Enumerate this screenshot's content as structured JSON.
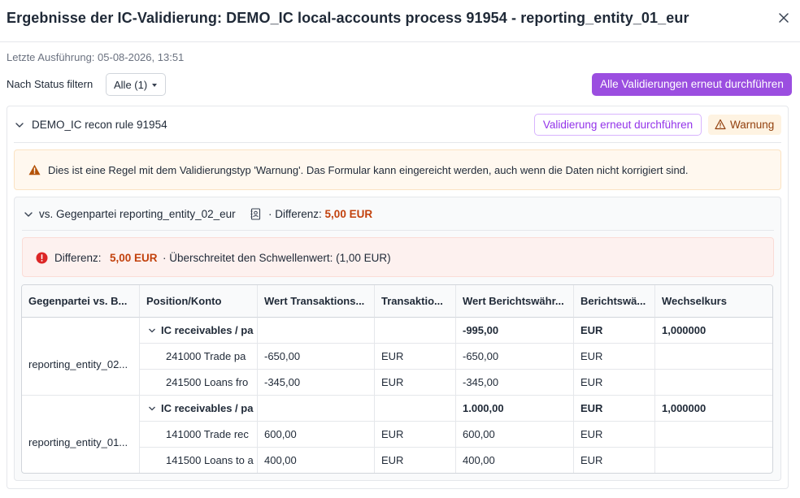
{
  "dialog": {
    "title": "Ergebnisse der IC-Validierung: DEMO_IC local-accounts process 91954 - reporting_entity_01_eur",
    "last_run": "Letzte Ausführung: 05-08-2026, 13:51",
    "filter_label": "Nach Status filtern",
    "filter_value": "Alle (1)",
    "rerun_all_label": "Alle Validierungen erneut durchführen"
  },
  "rule": {
    "name": "DEMO_IC recon rule 91954",
    "rerun_label": "Validierung erneut durchführen",
    "status_label": "Warnung",
    "warning_text": "Dies ist eine Regel mit dem Validierungstyp 'Warnung'. Das Formular kann eingereicht werden, auch wenn die Daten nicht korrigiert sind."
  },
  "counterparty": {
    "title": "vs. Gegenpartei reporting_entity_02_eur",
    "diff_label": "· Differenz:",
    "diff_value": "5,00 EUR",
    "banner_label": "Differenz:",
    "banner_value": "5,00 EUR",
    "banner_rest": "· Überschreitet den Schwellenwert: (1,00 EUR)"
  },
  "table": {
    "columns": [
      "Gegenpartei vs. B...",
      "Position/Konto",
      "Wert Transaktions...",
      "Transaktio...",
      "Wert Berichtswähr...",
      "Berichtswä...",
      "Wechselkurs"
    ],
    "groups": [
      {
        "entity": "reporting_entity_02...",
        "rows": [
          [
            "IC receivables / pa",
            "",
            "",
            "-995,00",
            "EUR",
            "1,000000"
          ],
          [
            "241000 Trade pa",
            "-650,00",
            "EUR",
            "-650,00",
            "EUR",
            ""
          ],
          [
            "241500 Loans fro",
            "-345,00",
            "EUR",
            "-345,00",
            "EUR",
            ""
          ]
        ]
      },
      {
        "entity": "reporting_entity_01...",
        "rows": [
          [
            "IC receivables / pa",
            "",
            "",
            "1.000,00",
            "EUR",
            "1,000000"
          ],
          [
            "141000 Trade rec",
            "600,00",
            "EUR",
            "600,00",
            "EUR",
            ""
          ],
          [
            "141500 Loans to a",
            "400,00",
            "EUR",
            "400,00",
            "EUR",
            ""
          ]
        ]
      }
    ]
  },
  "colors": {
    "primary": "#9b4ee0",
    "warning_bg": "#fff8ef",
    "warning_icon": "#b45309",
    "error_icon": "#dc2626",
    "diff_value": "#c2410c"
  },
  "icons": {
    "close": "close-icon",
    "chevron": "chevron-down-icon",
    "warning": "warning-triangle-icon",
    "error": "error-circle-icon",
    "book": "address-book-icon"
  }
}
